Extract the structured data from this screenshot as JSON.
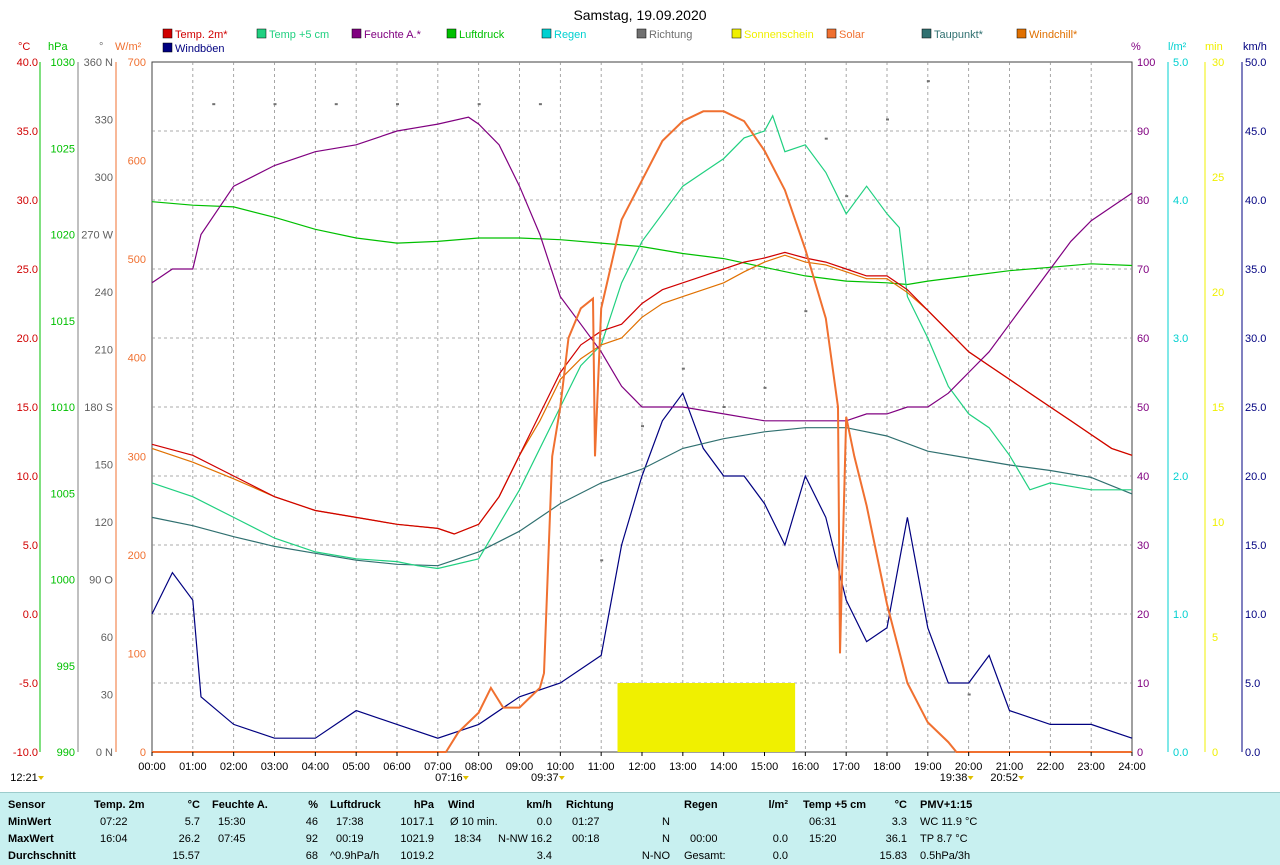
{
  "title": "Samstag, 19.09.2020",
  "legend": [
    {
      "label": "Temp. 2m*",
      "color": "#d00000"
    },
    {
      "label": "Temp +5 cm",
      "color": "#20d080"
    },
    {
      "label": "Feuchte A.*",
      "color": "#800080"
    },
    {
      "label": "Luftdruck",
      "color": "#00c000"
    },
    {
      "label": "Regen",
      "color": "#00d0d0"
    },
    {
      "label": "Richtung",
      "color": "#707070"
    },
    {
      "label": "Sonnenschein",
      "color": "#f0f000"
    },
    {
      "label": "Solar",
      "color": "#f07030"
    },
    {
      "label": "Taupunkt*",
      "color": "#307070"
    },
    {
      "label": "Windchill*",
      "color": "#e07000"
    },
    {
      "label": "Windböen",
      "color": "#000080"
    }
  ],
  "axis_units": {
    "temp": "°C",
    "pressure": "hPa",
    "direction": "°",
    "solar": "W/m²",
    "humidity": "%",
    "rain": "l/m²",
    "sunshine": "min",
    "wind": "km/h"
  },
  "colors": {
    "temp": "#d00000",
    "pressure": "#00c000",
    "direction": "#707070",
    "solar": "#f07030",
    "humidity": "#800080",
    "rain": "#00d0d0",
    "sunshine": "#f0f000",
    "wind": "#000080",
    "temp5": "#20d080",
    "dew": "#307070",
    "windchill": "#e07000"
  },
  "chart_data": {
    "type": "line",
    "x_unit": "time of day",
    "x_ticks": [
      "00:00",
      "01:00",
      "02:00",
      "03:00",
      "04:00",
      "05:00",
      "06:00",
      "07:00",
      "08:00",
      "09:00",
      "10:00",
      "11:00",
      "12:00",
      "13:00",
      "14:00",
      "15:00",
      "16:00",
      "17:00",
      "18:00",
      "19:00",
      "20:00",
      "21:00",
      "22:00",
      "23:00",
      "24:00"
    ],
    "axes": {
      "temp": {
        "ylim": [
          -10,
          40
        ],
        "ticks": [
          "40.0",
          "35.0",
          "30.0",
          "25.0",
          "20.0",
          "15.0",
          "10.0",
          "5.0",
          "0.0",
          "-5.0",
          "-10.0"
        ]
      },
      "pressure": {
        "ylim": [
          990,
          1030
        ],
        "ticks": [
          "1030",
          "1025",
          "1020",
          "1015",
          "1010",
          "1005",
          "1000",
          "995",
          "990"
        ]
      },
      "direction": {
        "ylim": [
          0,
          360
        ],
        "ticks": [
          "360 N",
          "330",
          "300",
          "270 W",
          "240",
          "210",
          "180 S",
          "150",
          "120",
          "90 O",
          "60",
          "30",
          "0 N"
        ]
      },
      "solar": {
        "ylim": [
          0,
          700
        ],
        "ticks": [
          "700",
          "600",
          "500",
          "400",
          "300",
          "200",
          "100",
          "0"
        ]
      },
      "humidity": {
        "ylim": [
          0,
          100
        ],
        "ticks": [
          "100",
          "90",
          "80",
          "70",
          "60",
          "50",
          "40",
          "30",
          "20",
          "10",
          "0"
        ]
      },
      "rain": {
        "ylim": [
          0,
          5
        ],
        "ticks": [
          "5.0",
          "4.0",
          "3.0",
          "2.0",
          "1.0",
          "0.0"
        ]
      },
      "sunshine": {
        "ylim": [
          0,
          30
        ],
        "ticks": [
          "30",
          "25",
          "20",
          "15",
          "10",
          "5",
          "0"
        ]
      },
      "wind": {
        "ylim": [
          0,
          50
        ],
        "ticks": [
          "50.0",
          "45.0",
          "40.0",
          "35.0",
          "30.0",
          "25.0",
          "20.0",
          "15.0",
          "10.0",
          "5.0",
          "0.0"
        ]
      }
    },
    "series": [
      {
        "name": "Temp. 2m*",
        "axis": "temp",
        "x": [
          0,
          1,
          2,
          3,
          4,
          5,
          6,
          7,
          7.4,
          8,
          8.5,
          9,
          9.5,
          10,
          10.5,
          11,
          11.5,
          12,
          12.5,
          13,
          13.5,
          14,
          14.5,
          15,
          15.5,
          16,
          16.5,
          17,
          17.5,
          18,
          18.5,
          19,
          19.5,
          20,
          20.5,
          21,
          21.5,
          22,
          22.5,
          23,
          23.5,
          24
        ],
        "y": [
          12.3,
          11.5,
          10.0,
          8.5,
          7.5,
          7.0,
          6.5,
          6.2,
          5.8,
          6.5,
          8.5,
          11.5,
          14.5,
          17.5,
          19.5,
          20.5,
          21.0,
          22.5,
          23.5,
          24.0,
          24.5,
          25.0,
          25.5,
          25.8,
          26.2,
          25.8,
          25.5,
          25.0,
          24.5,
          24.5,
          23.5,
          22.0,
          20.5,
          19.0,
          18.0,
          17.0,
          16.0,
          15.0,
          14.0,
          13.0,
          12.0,
          11.5
        ]
      },
      {
        "name": "Temp +5 cm",
        "axis": "temp",
        "x": [
          0,
          1,
          2,
          3,
          4,
          5,
          6,
          6.5,
          7,
          8,
          9,
          10,
          10.5,
          11,
          11.5,
          12,
          12.5,
          13,
          13.5,
          14,
          14.5,
          15,
          15.2,
          15.5,
          16,
          16.5,
          17,
          17.5,
          18,
          18.3,
          18.5,
          19,
          19.5,
          20,
          20.5,
          21,
          21.5,
          22,
          23,
          24
        ],
        "y": [
          9.5,
          8.5,
          7.0,
          5.5,
          4.5,
          4.0,
          3.8,
          3.5,
          3.3,
          4.0,
          9.0,
          15.0,
          18.0,
          19.5,
          24.0,
          27.0,
          29.0,
          31.0,
          32.0,
          33.0,
          34.5,
          35.0,
          36.1,
          33.5,
          34.0,
          32.0,
          29.0,
          31.0,
          29.0,
          28.0,
          23.0,
          20.0,
          16.5,
          14.5,
          13.5,
          11.5,
          9.0,
          9.5,
          9.0,
          9.0
        ]
      },
      {
        "name": "Feuchte A.*",
        "axis": "humidity",
        "x": [
          0,
          0.5,
          1,
          1.2,
          2,
          3,
          4,
          5,
          6,
          7,
          7.75,
          8,
          8.5,
          9,
          9.5,
          10,
          10.5,
          11,
          11.5,
          12,
          13,
          14,
          15,
          16,
          17,
          17.5,
          18,
          18.5,
          19,
          19.5,
          20,
          20.5,
          21,
          21.5,
          22,
          22.5,
          23,
          23.5,
          24
        ],
        "y": [
          68,
          70,
          70,
          75,
          82,
          85,
          87,
          88,
          90,
          91,
          92,
          91,
          88,
          82,
          75,
          66,
          62,
          58,
          53,
          50,
          50,
          49,
          48,
          48,
          48,
          49,
          49,
          50,
          50,
          52,
          55,
          58,
          62,
          66,
          70,
          74,
          77,
          79,
          81
        ]
      },
      {
        "name": "Luftdruck",
        "axis": "pressure",
        "x": [
          0,
          1,
          2,
          3,
          4,
          5,
          6,
          7,
          8,
          9,
          10,
          11,
          12,
          13,
          14,
          15,
          16,
          17,
          18,
          18.5,
          19,
          20,
          21,
          22,
          23,
          24
        ],
        "y": [
          1021.9,
          1021.7,
          1021.6,
          1021.0,
          1020.3,
          1019.8,
          1019.5,
          1019.6,
          1019.8,
          1019.8,
          1019.7,
          1019.5,
          1019.3,
          1018.9,
          1018.6,
          1018.1,
          1017.6,
          1017.3,
          1017.2,
          1017.1,
          1017.3,
          1017.6,
          1017.9,
          1018.1,
          1018.3,
          1018.2
        ]
      },
      {
        "name": "Taupunkt*",
        "axis": "temp",
        "x": [
          0,
          1,
          2,
          3,
          4,
          5,
          6,
          7,
          8,
          9,
          10,
          11,
          12,
          13,
          14,
          15,
          16,
          17,
          18,
          19,
          20,
          21,
          22,
          23,
          24
        ],
        "y": [
          7.0,
          6.4,
          5.6,
          4.9,
          4.4,
          3.9,
          3.6,
          3.5,
          4.5,
          6.0,
          8.0,
          9.5,
          10.5,
          12.0,
          12.7,
          13.2,
          13.5,
          13.5,
          12.9,
          11.8,
          11.3,
          10.8,
          10.4,
          9.9,
          8.7
        ]
      },
      {
        "name": "Windchill*",
        "axis": "temp",
        "x": [
          0,
          1,
          2,
          3,
          4,
          5,
          6,
          7,
          7.4,
          8,
          8.5,
          9,
          9.5,
          10,
          10.5,
          11,
          11.5,
          12,
          12.5,
          13,
          13.5,
          14,
          14.5,
          15,
          15.5,
          16,
          16.5,
          17,
          17.5,
          18,
          18.5,
          19,
          19.5,
          20,
          20.5,
          21,
          21.5,
          22,
          22.5,
          23,
          23.5,
          24
        ],
        "y": [
          12.0,
          11.0,
          9.8,
          8.5,
          7.5,
          7.0,
          6.5,
          6.2,
          5.8,
          6.5,
          8.5,
          11.5,
          14.0,
          17.0,
          18.5,
          19.5,
          20.0,
          21.5,
          22.5,
          23.0,
          23.5,
          24.0,
          24.8,
          25.5,
          26.0,
          25.5,
          25.3,
          24.8,
          24.3,
          24.3,
          23.3,
          22.0,
          20.5,
          19.0,
          18.0,
          17.0,
          16.0,
          15.0,
          14.0,
          13.0,
          12.0,
          11.5
        ]
      },
      {
        "name": "Solar",
        "axis": "solar",
        "x": [
          0,
          7.2,
          7.5,
          8,
          8.3,
          8.6,
          9,
          9.5,
          9.6,
          9.8,
          10,
          10.2,
          10.5,
          10.8,
          10.85,
          11,
          11.5,
          12,
          12.5,
          13,
          13.5,
          14,
          14.5,
          15,
          15.5,
          16,
          16.5,
          16.8,
          16.85,
          17,
          17.2,
          17.5,
          18,
          18.5,
          19,
          19.5,
          19.7,
          20,
          24
        ],
        "y": [
          0,
          0,
          20,
          40,
          65,
          45,
          45,
          65,
          80,
          300,
          350,
          420,
          450,
          460,
          300,
          450,
          540,
          580,
          620,
          640,
          650,
          650,
          640,
          610,
          570,
          510,
          440,
          350,
          100,
          340,
          300,
          250,
          150,
          70,
          30,
          10,
          0,
          0,
          0
        ]
      },
      {
        "name": "Windböen",
        "axis": "wind",
        "x": [
          0,
          0.5,
          1,
          1.2,
          2,
          3,
          4,
          5,
          6,
          7,
          8,
          9,
          10,
          11,
          11.5,
          12,
          12.5,
          13,
          13.5,
          14,
          14.5,
          15,
          15.5,
          16,
          16.5,
          17,
          17.5,
          18,
          18.5,
          19,
          19.5,
          20,
          20.5,
          21,
          22,
          23,
          24
        ],
        "y": [
          10,
          13,
          11,
          4,
          2,
          1,
          1,
          3,
          2,
          1,
          2,
          4,
          5,
          7,
          15,
          20,
          24,
          26,
          22,
          20,
          20,
          18,
          15,
          20,
          17,
          11,
          8,
          9,
          17,
          9,
          5,
          5,
          7,
          3,
          2,
          2,
          1
        ]
      },
      {
        "name": "Richtung",
        "axis": "direction",
        "x": [
          1.5,
          3,
          4.5,
          6,
          8,
          9.5,
          11,
          12,
          13,
          14,
          15,
          16,
          16.5,
          17,
          18,
          19,
          20
        ],
        "y": [
          338,
          338,
          338,
          338,
          338,
          338,
          100,
          170,
          200,
          180,
          190,
          230,
          320,
          290,
          330,
          350,
          30
        ]
      }
    ],
    "sunshine_bar": {
      "from": 11.4,
      "to": 15.75,
      "value_min": 3
    },
    "events": [
      {
        "label": "12:21",
        "time": 0.2
      },
      {
        "label": "07:16",
        "time": 7.27
      },
      {
        "label": "09:37",
        "time": 9.62
      },
      {
        "label": "19:38",
        "time": 19.63
      },
      {
        "label": "20:52",
        "time": 20.87
      }
    ]
  },
  "stats": {
    "row_labels": [
      "Sensor",
      "MinWert",
      "MaxWert",
      "Durchschnitt"
    ],
    "temp2m": {
      "title": "Temp. 2m",
      "unit": "°C",
      "min_time": "07:22",
      "min_val": "5.7",
      "max_time": "16:04",
      "max_val": "26.2",
      "avg": "15.57"
    },
    "humidity": {
      "title": "Feuchte A.",
      "unit": "%",
      "min_time": "15:30",
      "min_val": "46",
      "max_time": "07:45",
      "max_val": "92",
      "avg": "68"
    },
    "pressure": {
      "title": "Luftdruck",
      "unit": "hPa",
      "min_time": "17:38",
      "min_val": "1017.1",
      "max_time": "00:19",
      "max_val": "1021.9",
      "trend": "^0.9hPa/h",
      "avg": "1019.2"
    },
    "wind": {
      "title": "Wind",
      "unit": "km/h",
      "min_label": "Ø 10 min.",
      "min_val": "0.0",
      "max_time": "18:34",
      "max_dir": "N-NW",
      "max_val": "16.2",
      "avg": "3.4"
    },
    "direction": {
      "title": "Richtung",
      "min_time": "01:27",
      "min_val": "N",
      "max_time": "00:18",
      "max_val": "N",
      "avg": "N-NO"
    },
    "rain": {
      "title": "Regen",
      "unit": "l/m²",
      "max_time": "00:00",
      "max_val": "0.0",
      "total_label": "Gesamt:",
      "total": "0.0"
    },
    "temp5": {
      "title": "Temp +5 cm",
      "unit": "°C",
      "min_time": "06:31",
      "min_val": "3.3",
      "max_time": "15:20",
      "max_val": "36.1",
      "avg": "15.83"
    },
    "pmv": {
      "title": "PMV+1:15",
      "line1": "WC 11.9 °C",
      "line2": "TP 8.7 °C",
      "line3": "0.5hPa/3h"
    }
  }
}
